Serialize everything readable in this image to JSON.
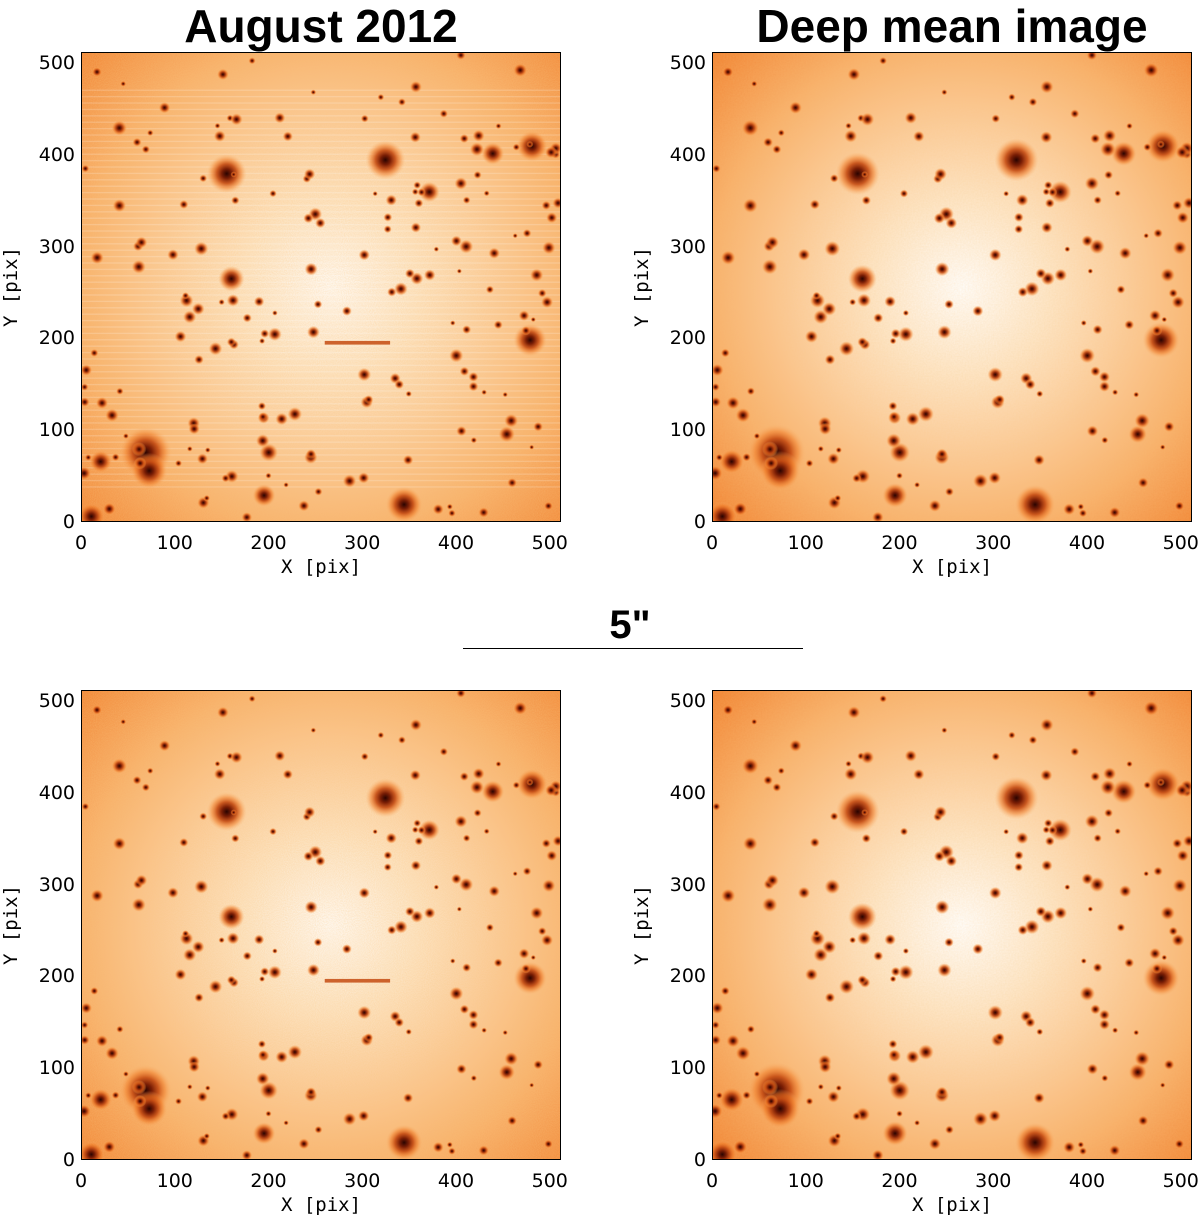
{
  "titles": {
    "left": "August 2012",
    "right": "Deep mean image"
  },
  "scale_bar": {
    "label": "5\""
  },
  "axes": {
    "xlabel": "X [pix]",
    "ylabel": "Y [pix]",
    "xticks": [
      "0",
      "100",
      "200",
      "300",
      "400",
      "500"
    ],
    "yticks": [
      "0",
      "100",
      "200",
      "300",
      "400",
      "500"
    ]
  },
  "panels": [
    {
      "id": "top-left",
      "variant": "single-epoch"
    },
    {
      "id": "top-right",
      "variant": "deep-mean"
    },
    {
      "id": "bottom-left",
      "variant": "single-epoch"
    },
    {
      "id": "bottom-right",
      "variant": "deep-mean"
    }
  ],
  "colors": {
    "colormap": [
      "#ffffff",
      "#fde6c8",
      "#f8b06a",
      "#ef7a26",
      "#c44b12",
      "#7a1e05",
      "#2a0300"
    ]
  }
}
